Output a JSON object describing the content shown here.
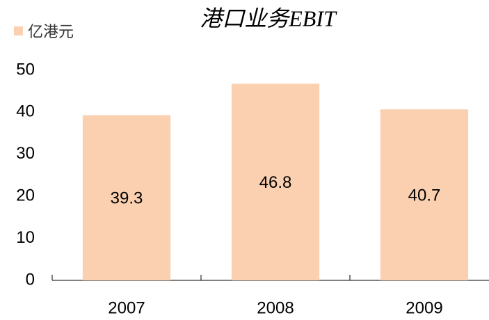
{
  "chart_data": {
    "type": "bar",
    "title": "港口业务EBIT",
    "legend": "亿港元",
    "categories": [
      "2007",
      "2008",
      "2009"
    ],
    "values": [
      39.3,
      46.8,
      40.7
    ],
    "color": "#fad0b0",
    "ylim": [
      0,
      50
    ],
    "yticks": [
      0,
      10,
      20,
      30,
      40,
      50
    ],
    "grid": false
  }
}
